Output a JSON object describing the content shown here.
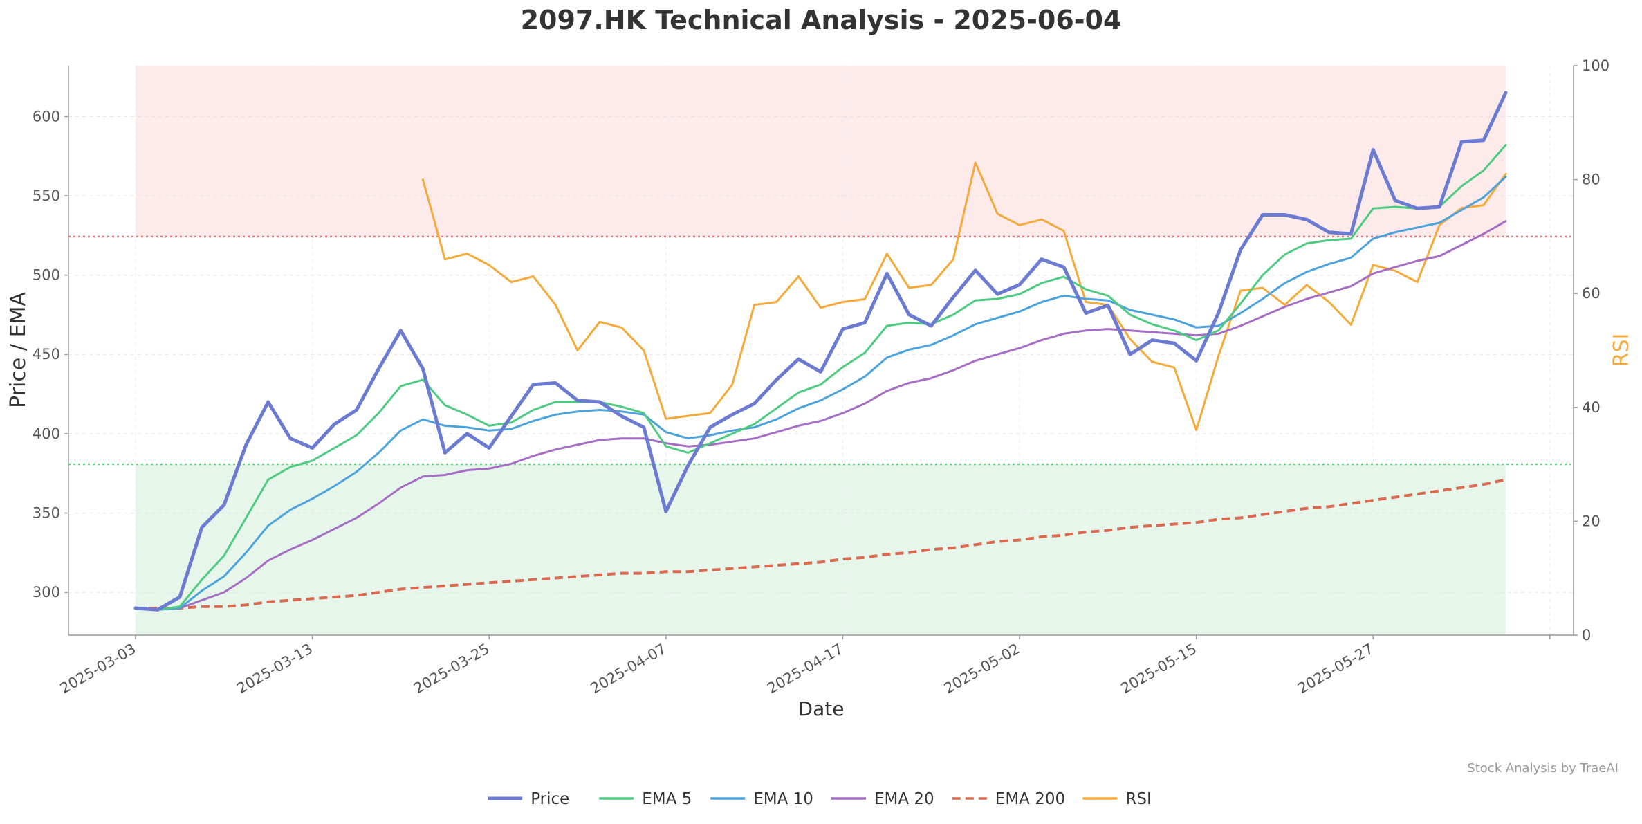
{
  "chart_data": {
    "type": "line",
    "title": "2097.HK Technical Analysis - 2025-06-04",
    "xlabel": "Date",
    "ylabel": "Price / EMA",
    "y2label": "RSI",
    "footer": "Stock Analysis by TraeAI",
    "ylim": [
      273,
      632
    ],
    "y2lim": [
      0,
      100
    ],
    "yticks": [
      300,
      350,
      400,
      450,
      500,
      550,
      600
    ],
    "y2ticks": [
      0,
      20,
      40,
      60,
      80,
      100
    ],
    "xticks": [
      "2025-03-03",
      "2025-03-13",
      "2025-03-25",
      "2025-04-07",
      "2025-04-17",
      "2025-05-02",
      "2025-05-15",
      "2025-05-27"
    ],
    "xtick_index": [
      0,
      8,
      16,
      24,
      32,
      40,
      48,
      56
    ],
    "overbought": 70,
    "oversold": 30,
    "grid": true,
    "legend_position": "bottom",
    "series": [
      {
        "name": "Price",
        "color": "#6c7bd2",
        "axis": "left",
        "style": "solid",
        "values": [
          290,
          289,
          297,
          341,
          355,
          393,
          420,
          397,
          391,
          406,
          415,
          441,
          465,
          441,
          388,
          400,
          391,
          411,
          431,
          432,
          421,
          420,
          411,
          404,
          351,
          380,
          404,
          412,
          419,
          434,
          447,
          439,
          466,
          470,
          501,
          475,
          468,
          486,
          503,
          488,
          494,
          510,
          505,
          476,
          481,
          450,
          459,
          457,
          446,
          476,
          516,
          538,
          538,
          535,
          527,
          526,
          579,
          547,
          542,
          543,
          584,
          585,
          615
        ]
      },
      {
        "name": "EMA 5",
        "color": "#4ecb80",
        "axis": "left",
        "style": "solid",
        "values": [
          290,
          289,
          291,
          308,
          323,
          347,
          371,
          379,
          383,
          391,
          399,
          413,
          430,
          434,
          418,
          412,
          405,
          407,
          415,
          420,
          420,
          420,
          417,
          413,
          392,
          388,
          394,
          400,
          406,
          416,
          426,
          431,
          442,
          451,
          468,
          470,
          469,
          475,
          484,
          485,
          488,
          495,
          499,
          491,
          487,
          475,
          469,
          465,
          459,
          465,
          482,
          500,
          513,
          520,
          522,
          523,
          542,
          543,
          542,
          543,
          556,
          566,
          582
        ]
      },
      {
        "name": "EMA 10",
        "color": "#4ca3dc",
        "axis": "left",
        "style": "solid",
        "values": [
          290,
          289,
          290,
          301,
          310,
          325,
          342,
          352,
          359,
          367,
          376,
          388,
          402,
          409,
          405,
          404,
          402,
          403,
          408,
          412,
          414,
          415,
          414,
          412,
          401,
          397,
          399,
          402,
          404,
          409,
          416,
          421,
          428,
          436,
          448,
          453,
          456,
          462,
          469,
          473,
          477,
          483,
          487,
          485,
          484,
          478,
          475,
          472,
          467,
          468,
          476,
          485,
          495,
          502,
          507,
          511,
          523,
          527,
          530,
          533,
          541,
          549,
          562
        ]
      },
      {
        "name": "EMA 20",
        "color": "#a56dc4",
        "axis": "left",
        "style": "solid",
        "values": [
          290,
          289,
          290,
          295,
          300,
          309,
          320,
          327,
          333,
          340,
          347,
          356,
          366,
          373,
          374,
          377,
          378,
          381,
          386,
          390,
          393,
          396,
          397,
          397,
          394,
          392,
          393,
          395,
          397,
          401,
          405,
          408,
          413,
          419,
          427,
          432,
          435,
          440,
          446,
          450,
          454,
          459,
          463,
          465,
          466,
          465,
          464,
          463,
          462,
          463,
          468,
          474,
          480,
          485,
          489,
          493,
          501,
          505,
          509,
          512,
          519,
          526,
          534
        ]
      },
      {
        "name": "EMA 200",
        "color": "#d96a50",
        "axis": "left",
        "style": "dashed",
        "values": [
          290,
          290,
          290,
          291,
          291,
          292,
          294,
          295,
          296,
          297,
          298,
          300,
          302,
          303,
          304,
          305,
          306,
          307,
          308,
          309,
          310,
          311,
          312,
          312,
          313,
          313,
          314,
          315,
          316,
          317,
          318,
          319,
          321,
          322,
          324,
          325,
          327,
          328,
          330,
          332,
          333,
          335,
          336,
          338,
          339,
          341,
          342,
          343,
          344,
          346,
          347,
          349,
          351,
          353,
          354,
          356,
          358,
          360,
          362,
          364,
          366,
          368,
          371
        ]
      },
      {
        "name": "RSI",
        "color": "#f5a93b",
        "axis": "right",
        "style": "solid",
        "values": [
          null,
          null,
          null,
          null,
          null,
          null,
          null,
          null,
          null,
          null,
          null,
          null,
          null,
          80,
          66,
          67,
          65,
          62,
          63,
          58,
          50,
          55,
          54,
          50,
          38,
          38.5,
          39,
          44,
          58,
          58.5,
          63,
          57.5,
          58.5,
          59,
          67,
          61,
          61.5,
          66,
          83,
          74,
          72,
          73,
          71,
          58.5,
          58,
          52,
          48,
          47,
          36,
          49,
          60.5,
          61,
          58,
          61.5,
          58.5,
          54.5,
          65,
          64,
          62,
          72,
          75,
          75.5,
          81
        ]
      }
    ]
  }
}
